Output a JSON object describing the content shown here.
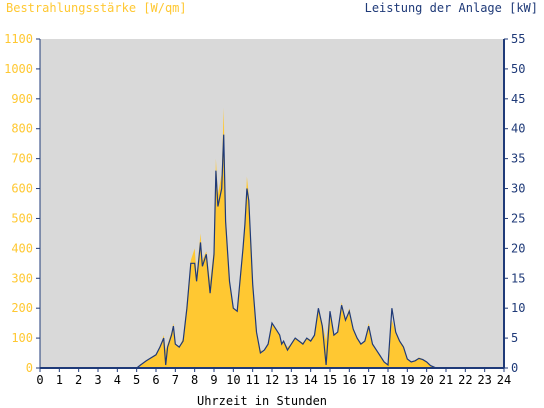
{
  "colors": {
    "irradiance": "#FFC832",
    "power": "#1F3A78",
    "plot_bg": "#D9D9D9",
    "axis_text_left": "#FFC832",
    "axis_text_right": "#1F3A78",
    "xaxis_text": "#000000"
  },
  "chart_data": {
    "type": "area",
    "left_title": "Bestrahlungsstärke [W/qm]",
    "right_title": "Leistung der Anlage [kW]",
    "xlabel": "Uhrzeit in Stunden",
    "xlim": [
      0,
      24
    ],
    "ylim_left": [
      0,
      1100
    ],
    "ylim_right": [
      0,
      55
    ],
    "x_ticks": [
      "0",
      "1",
      "2",
      "3",
      "4",
      "5",
      "6",
      "7",
      "8",
      "9",
      "10",
      "11",
      "12",
      "13",
      "14",
      "15",
      "16",
      "17",
      "18",
      "19",
      "20",
      "21",
      "22",
      "23",
      "24"
    ],
    "y_left_ticks": [
      "0",
      "100",
      "200",
      "300",
      "400",
      "500",
      "600",
      "700",
      "800",
      "900",
      "1000",
      "1100"
    ],
    "y_right_ticks": [
      "0",
      "5",
      "10",
      "15",
      "20",
      "25",
      "30",
      "35",
      "40",
      "45",
      "50",
      "55"
    ],
    "series": [
      {
        "name": "Bestrahlungsstärke [W/qm]",
        "kind": "area",
        "axis": "left",
        "points": [
          [
            0,
            0
          ],
          [
            5.0,
            0
          ],
          [
            5.2,
            8
          ],
          [
            5.5,
            25
          ],
          [
            6.0,
            45
          ],
          [
            6.2,
            70
          ],
          [
            6.4,
            110
          ],
          [
            6.5,
            60
          ],
          [
            6.6,
            80
          ],
          [
            6.8,
            120
          ],
          [
            6.9,
            150
          ],
          [
            7.0,
            80
          ],
          [
            7.2,
            70
          ],
          [
            7.4,
            100
          ],
          [
            7.6,
            220
          ],
          [
            7.8,
            360
          ],
          [
            8.0,
            400
          ],
          [
            8.1,
            310
          ],
          [
            8.3,
            450
          ],
          [
            8.4,
            360
          ],
          [
            8.6,
            390
          ],
          [
            8.8,
            290
          ],
          [
            9.0,
            400
          ],
          [
            9.1,
            700
          ],
          [
            9.2,
            580
          ],
          [
            9.4,
            650
          ],
          [
            9.5,
            870
          ],
          [
            9.6,
            520
          ],
          [
            9.8,
            300
          ],
          [
            10.0,
            200
          ],
          [
            10.2,
            190
          ],
          [
            10.5,
            400
          ],
          [
            10.6,
            480
          ],
          [
            10.7,
            640
          ],
          [
            10.8,
            580
          ],
          [
            11.0,
            300
          ],
          [
            11.2,
            120
          ],
          [
            11.4,
            60
          ],
          [
            11.6,
            55
          ],
          [
            11.8,
            80
          ],
          [
            12.0,
            145
          ],
          [
            12.2,
            130
          ],
          [
            12.4,
            110
          ],
          [
            12.5,
            80
          ],
          [
            12.6,
            90
          ],
          [
            12.8,
            70
          ],
          [
            13.0,
            80
          ],
          [
            13.2,
            100
          ],
          [
            13.4,
            90
          ],
          [
            13.6,
            85
          ],
          [
            13.8,
            100
          ],
          [
            14.0,
            95
          ],
          [
            14.2,
            110
          ],
          [
            14.4,
            200
          ],
          [
            14.6,
            150
          ],
          [
            14.8,
            90
          ],
          [
            15.0,
            190
          ],
          [
            15.2,
            110
          ],
          [
            15.4,
            120
          ],
          [
            15.6,
            220
          ],
          [
            15.8,
            160
          ],
          [
            16.0,
            200
          ],
          [
            16.2,
            130
          ],
          [
            16.4,
            100
          ],
          [
            16.6,
            80
          ],
          [
            16.8,
            90
          ],
          [
            17.0,
            150
          ],
          [
            17.2,
            80
          ],
          [
            17.4,
            60
          ],
          [
            17.6,
            40
          ],
          [
            17.8,
            20
          ],
          [
            18.0,
            10
          ],
          [
            18.2,
            160
          ],
          [
            18.4,
            120
          ],
          [
            18.6,
            90
          ],
          [
            18.8,
            75
          ],
          [
            19.0,
            30
          ],
          [
            19.2,
            20
          ],
          [
            19.4,
            25
          ],
          [
            19.6,
            35
          ],
          [
            19.8,
            30
          ],
          [
            20.0,
            20
          ],
          [
            20.2,
            8
          ],
          [
            20.5,
            0
          ],
          [
            24,
            0
          ]
        ]
      },
      {
        "name": "Leistung der Anlage [kW]",
        "kind": "line",
        "axis": "right",
        "points": [
          [
            0,
            0
          ],
          [
            5.0,
            0
          ],
          [
            5.2,
            0.5
          ],
          [
            5.5,
            1.2
          ],
          [
            6.0,
            2.2
          ],
          [
            6.2,
            3.5
          ],
          [
            6.4,
            5.0
          ],
          [
            6.5,
            0.5
          ],
          [
            6.6,
            3.5
          ],
          [
            6.8,
            5.5
          ],
          [
            6.9,
            7.0
          ],
          [
            7.0,
            4.0
          ],
          [
            7.2,
            3.5
          ],
          [
            7.4,
            4.5
          ],
          [
            7.6,
            10.0
          ],
          [
            7.8,
            17.5
          ],
          [
            8.0,
            17.5
          ],
          [
            8.1,
            14.5
          ],
          [
            8.3,
            21.0
          ],
          [
            8.4,
            17.0
          ],
          [
            8.6,
            19.0
          ],
          [
            8.8,
            12.5
          ],
          [
            9.0,
            19.0
          ],
          [
            9.1,
            33.0
          ],
          [
            9.2,
            27.0
          ],
          [
            9.4,
            30.0
          ],
          [
            9.5,
            39.0
          ],
          [
            9.6,
            24.5
          ],
          [
            9.8,
            14.5
          ],
          [
            10.0,
            10.0
          ],
          [
            10.2,
            9.5
          ],
          [
            10.5,
            20.0
          ],
          [
            10.6,
            24.0
          ],
          [
            10.7,
            30.0
          ],
          [
            10.8,
            28.0
          ],
          [
            11.0,
            14.0
          ],
          [
            11.2,
            6.0
          ],
          [
            11.4,
            2.5
          ],
          [
            11.6,
            3.0
          ],
          [
            11.8,
            4.0
          ],
          [
            12.0,
            7.5
          ],
          [
            12.2,
            6.5
          ],
          [
            12.4,
            5.5
          ],
          [
            12.5,
            4.0
          ],
          [
            12.6,
            4.5
          ],
          [
            12.8,
            3.0
          ],
          [
            13.0,
            4.0
          ],
          [
            13.2,
            5.0
          ],
          [
            13.4,
            4.5
          ],
          [
            13.6,
            4.0
          ],
          [
            13.8,
            5.0
          ],
          [
            14.0,
            4.5
          ],
          [
            14.2,
            5.5
          ],
          [
            14.4,
            10.0
          ],
          [
            14.6,
            7.0
          ],
          [
            14.8,
            0.5
          ],
          [
            15.0,
            9.5
          ],
          [
            15.2,
            5.5
          ],
          [
            15.4,
            6.0
          ],
          [
            15.6,
            10.5
          ],
          [
            15.8,
            8.0
          ],
          [
            16.0,
            9.5
          ],
          [
            16.2,
            6.5
          ],
          [
            16.4,
            5.0
          ],
          [
            16.6,
            4.0
          ],
          [
            16.8,
            4.5
          ],
          [
            17.0,
            7.0
          ],
          [
            17.2,
            4.0
          ],
          [
            17.4,
            3.0
          ],
          [
            17.6,
            2.0
          ],
          [
            17.8,
            1.0
          ],
          [
            18.0,
            0.5
          ],
          [
            18.2,
            10.0
          ],
          [
            18.4,
            6.0
          ],
          [
            18.6,
            4.5
          ],
          [
            18.8,
            3.5
          ],
          [
            19.0,
            1.5
          ],
          [
            19.2,
            1.0
          ],
          [
            19.4,
            1.2
          ],
          [
            19.6,
            1.6
          ],
          [
            19.8,
            1.4
          ],
          [
            20.0,
            1.0
          ],
          [
            20.2,
            0.4
          ],
          [
            20.5,
            0
          ],
          [
            24,
            0
          ]
        ]
      }
    ]
  }
}
